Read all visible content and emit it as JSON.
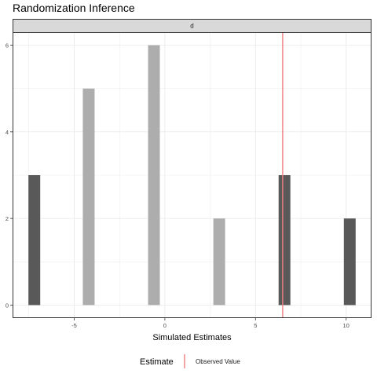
{
  "chart_data": {
    "type": "bar",
    "title": "Randomization Inference",
    "facet_label": "d",
    "xlabel": "Simulated Estimates",
    "ylabel": "",
    "xlim": [
      -8.4,
      11.4
    ],
    "ylim": [
      -0.3,
      6.3
    ],
    "x_ticks": [
      -5,
      0,
      5,
      10
    ],
    "y_ticks": [
      0,
      2,
      4,
      6
    ],
    "bar_width": 0.65,
    "bars": [
      {
        "x": -7.2,
        "count": 3,
        "tone": "dark"
      },
      {
        "x": -4.2,
        "count": 5,
        "tone": "light"
      },
      {
        "x": -0.6,
        "count": 6,
        "tone": "light"
      },
      {
        "x": 3.0,
        "count": 2,
        "tone": "light"
      },
      {
        "x": 6.6,
        "count": 3,
        "tone": "dark"
      },
      {
        "x": 10.2,
        "count": 2,
        "tone": "dark"
      }
    ],
    "observed_value": 6.5,
    "grid": true,
    "legend": {
      "position": "bottom",
      "title": "Estimate",
      "entries": [
        {
          "label": "Observed Value",
          "color": "#f08080"
        }
      ]
    },
    "colors": {
      "dark": "#595959",
      "light": "#adadad",
      "observed": "#f08080",
      "strip": "#d9d9d9",
      "grid": "#ebebeb"
    }
  }
}
